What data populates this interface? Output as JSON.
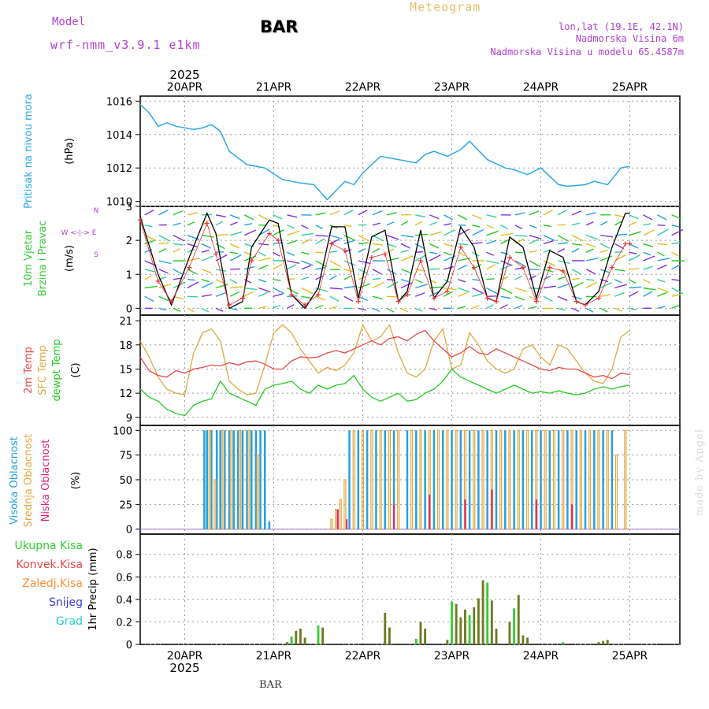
{
  "header": {
    "model_label": "Model",
    "model_name": "wrf-nmm_v3.9.1 e1km",
    "station": "BAR",
    "title": "Meteogram",
    "coords": "lon,lat (19.1E, 42.1N)",
    "elevation": "Nadmorska Visina 6m",
    "model_elevation": "Nadmorska Visina u modelu 65.4587m",
    "bottom_label": "BAR",
    "credit": "made by Angel"
  },
  "colors": {
    "pressure": "#2aa8e6",
    "temp2m": "#e84a4a",
    "sfc_temp": "#e0a840",
    "dewpt": "#22cc22",
    "wind_speed": "#000000",
    "gust": "#e83030",
    "cloud_high": "#22a0e0",
    "cloud_mid": "#e0a840",
    "cloud_low": "#e0207a",
    "precip_total": "#33cc33",
    "precip_conv": "#e84a4a",
    "precip_frozen": "#ff8c30",
    "snow": "#3a3ad8",
    "hail": "#22cccc",
    "precip_bar": "#6b7a1e",
    "label_purple": "#b040d0"
  },
  "time_axis": {
    "year": "2025",
    "ticks": [
      "20APR",
      "21APR",
      "22APR",
      "23APR",
      "24APR",
      "25APR"
    ]
  },
  "chart_data": [
    {
      "type": "line",
      "panel": "pressure",
      "ylabel_lines": [
        "Pritisak na nivou mora",
        "(hPa)"
      ],
      "ylim": [
        1009.7,
        1016.3
      ],
      "yticks": [
        1010,
        1012,
        1014,
        1016
      ],
      "grid": true,
      "x_days": [
        0,
        0.1,
        0.2,
        0.3,
        0.4,
        0.5,
        0.6,
        0.7,
        0.8,
        0.9,
        1.0,
        1.2,
        1.4,
        1.6,
        1.8,
        1.95,
        2.1,
        2.3,
        2.4,
        2.5,
        2.7,
        2.9,
        3.1,
        3.2,
        3.3,
        3.45,
        3.6,
        3.7,
        3.9,
        4.1,
        4.2,
        4.35,
        4.5,
        4.7,
        4.8,
        5.0,
        5.1,
        5.25,
        5.4,
        5.5
      ],
      "series": [
        {
          "values": [
            1015.8,
            1015.3,
            1014.5,
            1014.7,
            1014.5,
            1014.4,
            1014.3,
            1014.4,
            1014.6,
            1014.2,
            1013.0,
            1012.2,
            1012.0,
            1011.3,
            1011.1,
            1011.0,
            1010.1,
            1011.2,
            1011.0,
            1011.7,
            1012.7,
            1012.5,
            1012.3,
            1012.8,
            1013.0,
            1012.7,
            1013.1,
            1013.6,
            1012.5,
            1012.0,
            1011.9,
            1011.6,
            1012.0,
            1011.0,
            1010.9,
            1011.0,
            1011.2,
            1011.0,
            1012.0,
            1012.1
          ]
        }
      ]
    },
    {
      "type": "line",
      "panel": "wind",
      "ylabel_lines": [
        "10m Vjetar",
        "Brzina i Pravac",
        "(m/s)"
      ],
      "compass": "W <-|-> E",
      "compass_n": "N",
      "compass_s": "S",
      "ylim": [
        -0.2,
        3.0
      ],
      "yticks": [
        0,
        1,
        2,
        3
      ],
      "grid": true,
      "x_days": [
        0,
        0.2,
        0.35,
        0.55,
        0.75,
        0.85,
        1.0,
        1.15,
        1.25,
        1.45,
        1.55,
        1.7,
        1.85,
        2.0,
        2.15,
        2.3,
        2.45,
        2.6,
        2.75,
        2.9,
        3.0,
        3.15,
        3.3,
        3.45,
        3.6,
        3.75,
        3.9,
        4.0,
        4.15,
        4.3,
        4.45,
        4.6,
        4.75,
        4.9,
        5.0,
        5.15,
        5.3,
        5.45,
        5.5
      ],
      "series": [
        {
          "name": "speed",
          "values": [
            2.7,
            1.0,
            0.1,
            1.5,
            2.8,
            2.2,
            0.0,
            0.2,
            1.8,
            2.6,
            2.5,
            0.4,
            0.0,
            0.6,
            2.4,
            2.4,
            0.3,
            2.1,
            2.3,
            0.2,
            0.5,
            2.3,
            0.3,
            0.8,
            2.4,
            1.8,
            0.3,
            0.2,
            2.1,
            1.8,
            0.3,
            1.7,
            1.5,
            0.2,
            0.1,
            0.5,
            1.8,
            2.8,
            2.8
          ]
        },
        {
          "name": "gust",
          "values": [
            2.6,
            0.8,
            0.2,
            1.2,
            2.5,
            1.6,
            0.1,
            0.3,
            1.4,
            2.2,
            2.0,
            0.4,
            0.1,
            0.4,
            1.9,
            1.7,
            0.2,
            1.5,
            1.6,
            0.2,
            0.4,
            1.4,
            0.3,
            0.5,
            1.8,
            1.2,
            0.3,
            0.2,
            1.5,
            1.2,
            0.2,
            1.2,
            1.1,
            0.2,
            0.1,
            0.3,
            1.2,
            1.9,
            1.9
          ]
        }
      ]
    },
    {
      "type": "line",
      "panel": "temperature",
      "ylabel_lines": [
        "2m Temp",
        "SFC Temp",
        "dewpt Temp",
        "(C)"
      ],
      "ylim": [
        8,
        21.7
      ],
      "yticks": [
        9,
        12,
        15,
        18,
        21
      ],
      "grid": true,
      "x_days": [
        0,
        0.1,
        0.2,
        0.3,
        0.4,
        0.5,
        0.6,
        0.7,
        0.8,
        0.9,
        1.0,
        1.1,
        1.2,
        1.3,
        1.4,
        1.5,
        1.6,
        1.7,
        1.8,
        1.9,
        2.0,
        2.1,
        2.2,
        2.3,
        2.4,
        2.5,
        2.6,
        2.7,
        2.8,
        2.9,
        3.0,
        3.1,
        3.2,
        3.3,
        3.4,
        3.5,
        3.6,
        3.7,
        3.8,
        3.9,
        4.0,
        4.1,
        4.2,
        4.3,
        4.4,
        4.5,
        4.6,
        4.7,
        4.8,
        4.9,
        5.0,
        5.1,
        5.2,
        5.3,
        5.4,
        5.5
      ],
      "series": [
        {
          "name": "2m Temp",
          "values": [
            16.5,
            14.8,
            14.2,
            14.0,
            14.8,
            14.5,
            15.0,
            15.2,
            15.5,
            15.4,
            15.8,
            15.5,
            15.9,
            16.0,
            15.6,
            15.0,
            15.0,
            16.0,
            16.5,
            16.4,
            16.5,
            17.0,
            17.3,
            17.0,
            17.5,
            18.0,
            18.5,
            18.0,
            18.8,
            19.0,
            18.5,
            19.3,
            19.8,
            18.5,
            17.5,
            16.5,
            17.0,
            17.8,
            17.0,
            16.8,
            17.5,
            17.0,
            16.5,
            16.0,
            15.5,
            15.0,
            14.8,
            15.2,
            15.0,
            15.0,
            14.5,
            14.0,
            14.2,
            13.8,
            14.5,
            14.3
          ]
        },
        {
          "name": "SFC Temp",
          "values": [
            18.5,
            16.5,
            14.0,
            12.5,
            12.0,
            11.8,
            17.0,
            19.5,
            20.0,
            18.5,
            13.5,
            12.5,
            11.8,
            12.0,
            15.5,
            19.5,
            20.5,
            19.5,
            17.5,
            16.0,
            14.5,
            15.2,
            14.8,
            15.5,
            17.0,
            20.5,
            18.5,
            19.0,
            20.5,
            17.0,
            14.5,
            14.0,
            15.0,
            18.5,
            20.0,
            15.0,
            15.5,
            19.5,
            18.0,
            16.0,
            15.0,
            14.5,
            15.0,
            17.5,
            18.0,
            16.5,
            15.5,
            18.0,
            17.5,
            16.0,
            14.5,
            13.5,
            13.2,
            15.0,
            19.0,
            19.8
          ]
        },
        {
          "name": "dewpt Temp",
          "values": [
            12.5,
            11.5,
            11.0,
            10.0,
            9.5,
            9.2,
            10.5,
            11.0,
            11.3,
            13.5,
            12.0,
            11.5,
            11.0,
            10.5,
            12.5,
            13.0,
            13.2,
            13.5,
            12.5,
            12.0,
            13.0,
            12.5,
            13.0,
            13.2,
            14.2,
            12.5,
            11.5,
            11.0,
            11.5,
            12.0,
            11.0,
            11.2,
            12.0,
            12.5,
            13.5,
            15.0,
            14.0,
            13.5,
            13.0,
            12.5,
            12.0,
            12.5,
            13.0,
            12.5,
            12.0,
            12.2,
            12.0,
            12.3,
            12.0,
            11.8,
            12.0,
            12.5,
            12.8,
            12.5,
            12.8,
            13.0
          ]
        }
      ]
    },
    {
      "type": "bar",
      "panel": "cloud",
      "ylabel_lines": [
        "Visoka Oblacnost",
        "Srednja Oblacnost",
        "Niska Oblacnost",
        "(%)"
      ],
      "ylim": [
        -5,
        105
      ],
      "yticks": [
        0,
        25,
        50,
        75,
        100
      ],
      "grid": true,
      "bar_width_days": 0.022,
      "series": [
        {
          "name": "Visoka Oblacnost",
          "x_days": [
            0.72,
            0.75,
            0.8,
            0.86,
            0.9,
            0.95,
            1.0,
            1.05,
            1.1,
            1.15,
            1.2,
            1.25,
            1.3,
            1.35,
            1.4,
            1.45,
            2.35,
            2.45,
            2.55,
            2.65,
            2.75,
            2.85,
            3.0,
            3.1,
            3.2,
            3.3,
            3.4,
            3.5,
            3.6,
            3.7,
            3.8,
            3.9,
            4.0,
            4.1,
            4.2,
            4.3,
            4.4,
            4.5,
            4.6,
            4.7,
            4.8,
            4.9,
            5.0,
            5.1,
            5.2,
            5.3
          ],
          "values": [
            100,
            100,
            100,
            100,
            100,
            100,
            100,
            100,
            100,
            100,
            100,
            100,
            100,
            100,
            100,
            8,
            100,
            100,
            100,
            100,
            100,
            100,
            100,
            100,
            100,
            100,
            100,
            100,
            100,
            100,
            100,
            100,
            100,
            100,
            100,
            100,
            100,
            100,
            100,
            100,
            100,
            100,
            100,
            100,
            100,
            100
          ]
        },
        {
          "name": "Srednja Oblacnost",
          "x_days": [
            0.78,
            0.84,
            0.93,
            1.02,
            1.12,
            1.22,
            1.32,
            2.15,
            2.2,
            2.25,
            2.3,
            2.4,
            2.5,
            2.6,
            2.7,
            2.8,
            2.9,
            3.05,
            3.15,
            3.25,
            3.35,
            3.45,
            3.55,
            3.65,
            3.75,
            3.85,
            3.95,
            4.05,
            4.15,
            4.25,
            4.35,
            4.45,
            4.55,
            4.65,
            4.75,
            4.85,
            4.95,
            5.05,
            5.15,
            5.25,
            5.35,
            5.45
          ],
          "values": [
            100,
            50,
            100,
            100,
            100,
            100,
            75,
            10,
            20,
            30,
            50,
            100,
            100,
            100,
            100,
            100,
            100,
            100,
            100,
            100,
            100,
            100,
            100,
            100,
            100,
            100,
            100,
            100,
            100,
            100,
            100,
            100,
            100,
            100,
            100,
            100,
            100,
            100,
            100,
            100,
            75,
            100
          ]
        },
        {
          "name": "Niska Oblacnost",
          "x_days": [
            2.22,
            2.32,
            2.85,
            3.25,
            3.65,
            3.95,
            4.45,
            4.85
          ],
          "values": [
            20,
            10,
            25,
            35,
            30,
            40,
            30,
            25
          ]
        }
      ]
    },
    {
      "type": "bar",
      "panel": "precip",
      "ylabel_lines": [
        "1hr Precip (mm)"
      ],
      "legend": [
        "Ukupna Kisa",
        "Konvek.Kisa",
        "Zaledj.Kisa",
        "Snijeg",
        "Grad"
      ],
      "ylim": [
        0,
        0.98
      ],
      "yticks": [
        0,
        0.2,
        0.4,
        0.6,
        0.8
      ],
      "grid": true,
      "bar_width_days": 0.025,
      "x_days": [
        1.65,
        1.7,
        1.75,
        1.8,
        1.85,
        2.0,
        2.05,
        2.75,
        2.8,
        3.1,
        3.15,
        3.2,
        3.45,
        3.5,
        3.55,
        3.6,
        3.65,
        3.7,
        3.75,
        3.8,
        3.85,
        3.9,
        3.95,
        4.0,
        4.15,
        4.2,
        4.25,
        4.3,
        4.35,
        4.75,
        5.15,
        5.2,
        5.25
      ],
      "values": [
        0.02,
        0.07,
        0.12,
        0.14,
        0.06,
        0.17,
        0.15,
        0.28,
        0.15,
        0.05,
        0.2,
        0.14,
        0.04,
        0.38,
        0.36,
        0.24,
        0.31,
        0.26,
        0.33,
        0.41,
        0.57,
        0.55,
        0.39,
        0.14,
        0.2,
        0.32,
        0.44,
        0.08,
        0.06,
        0.02,
        0.02,
        0.03,
        0.04
      ]
    }
  ]
}
